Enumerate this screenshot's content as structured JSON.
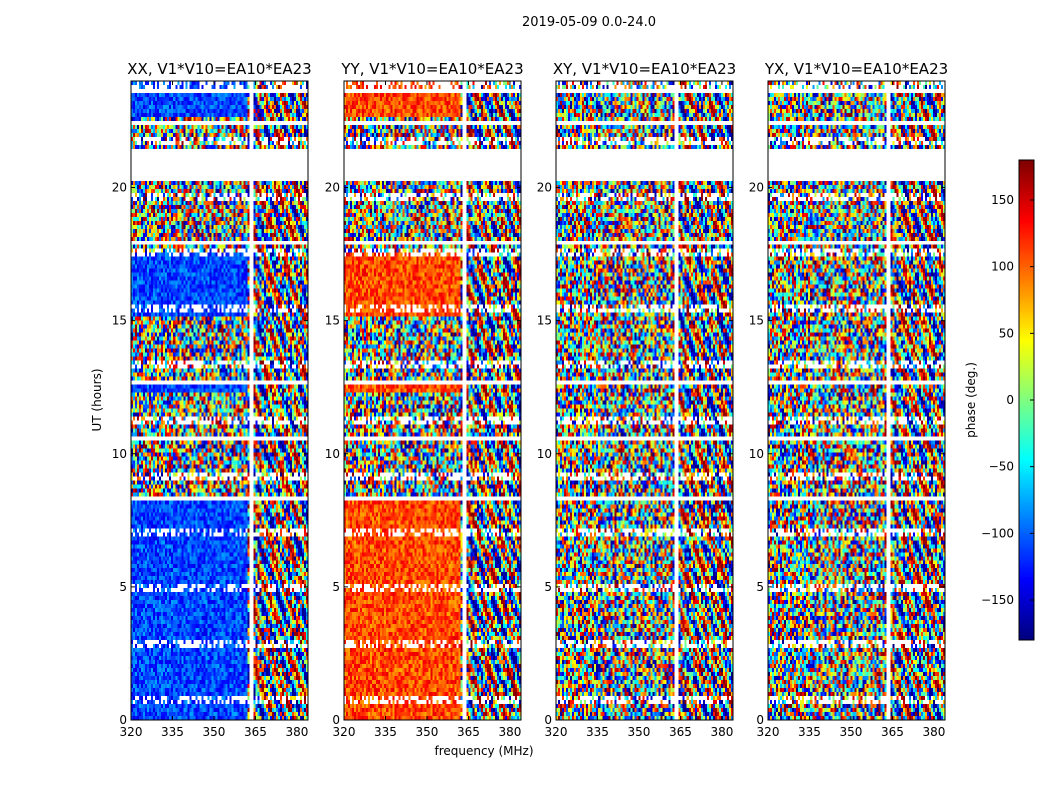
{
  "chart_data": {
    "type": "heatmap",
    "suptitle": "2019-05-09 0.0-24.0",
    "xlabel": "frequency (MHz)",
    "ylabel": "UT (hours)",
    "xlim": [
      320,
      384
    ],
    "ylim": [
      0,
      24
    ],
    "xticks": [
      "320",
      "335",
      "350",
      "365",
      "380"
    ],
    "yticks": [
      "0",
      "5",
      "10",
      "15",
      "20"
    ],
    "panels": [
      {
        "title": "XX, V1*V10=EA10*EA23",
        "bias": -110
      },
      {
        "title": "YY, V1*V10=EA10*EA23",
        "bias": 110
      },
      {
        "title": "XY, V1*V10=EA10*EA23",
        "bias": null
      },
      {
        "title": "YX, V1*V10=EA10*EA23",
        "bias": null
      }
    ],
    "colorbar": {
      "label": "phase (deg.)",
      "range": [
        -180,
        180
      ],
      "ticks": [
        "150",
        "100",
        "50",
        "0",
        "−50",
        "−100",
        "−150"
      ],
      "colormap": [
        "#00007f",
        "#0000ff",
        "#007fff",
        "#00ffff",
        "#7fff7f",
        "#ffff00",
        "#ff7f00",
        "#ff0000",
        "#7f0000"
      ]
    },
    "blank_bands_hours": [
      [
        0.1,
        0.2
      ],
      [
        0.55,
        0.6
      ],
      [
        1.6,
        1.7
      ],
      [
        3.55,
        3.62
      ],
      [
        4.15,
        4.22
      ],
      [
        8.3,
        8.45
      ],
      [
        10.55,
        10.6
      ],
      [
        12.6,
        12.7
      ],
      [
        14.2,
        14.3
      ],
      [
        15.1,
        15.2
      ],
      [
        17.9,
        18.0
      ],
      [
        20.2,
        21.4
      ],
      [
        22.3,
        22.5
      ],
      [
        23.6,
        23.7
      ]
    ],
    "flagged_channel_mhz": [
      363,
      364
    ]
  }
}
